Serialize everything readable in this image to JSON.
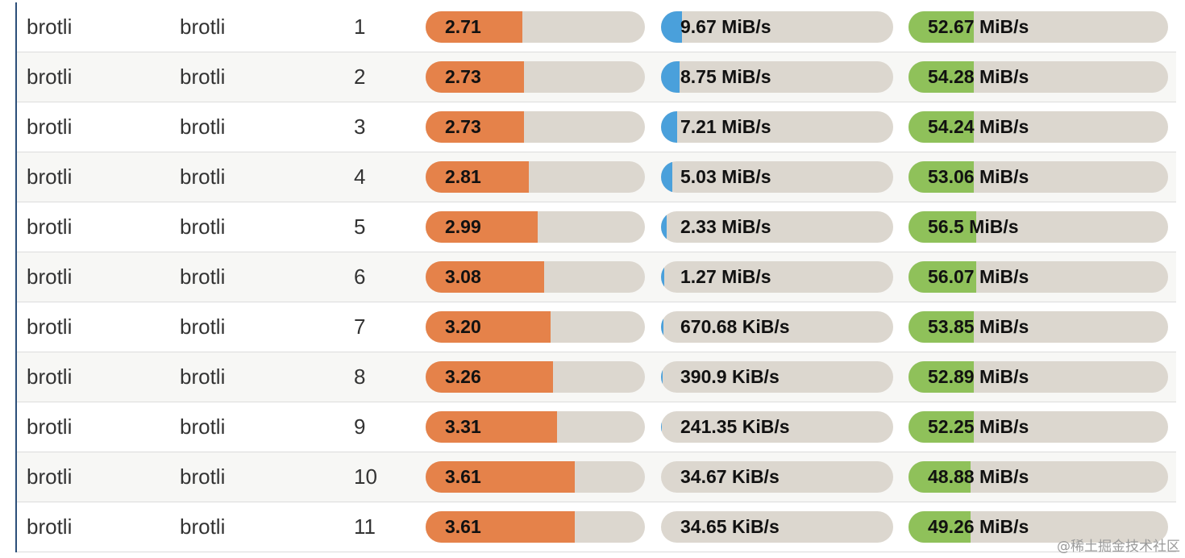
{
  "rows": [
    {
      "library": "brotli",
      "algorithm": "brotli",
      "level": "1",
      "ratio": "2.71",
      "ratio_pct": 44,
      "compress": "9.67 MiB/s",
      "compress_pct": 9,
      "decompress": "52.67 MiB/s",
      "decompress_pct": 25
    },
    {
      "library": "brotli",
      "algorithm": "brotli",
      "level": "2",
      "ratio": "2.73",
      "ratio_pct": 45,
      "compress": "8.75 MiB/s",
      "compress_pct": 8,
      "decompress": "54.28 MiB/s",
      "decompress_pct": 25
    },
    {
      "library": "brotli",
      "algorithm": "brotli",
      "level": "3",
      "ratio": "2.73",
      "ratio_pct": 45,
      "compress": "7.21 MiB/s",
      "compress_pct": 7,
      "decompress": "54.24 MiB/s",
      "decompress_pct": 25
    },
    {
      "library": "brotli",
      "algorithm": "brotli",
      "level": "4",
      "ratio": "2.81",
      "ratio_pct": 47,
      "compress": "5.03 MiB/s",
      "compress_pct": 5,
      "decompress": "53.06 MiB/s",
      "decompress_pct": 25
    },
    {
      "library": "brotli",
      "algorithm": "brotli",
      "level": "5",
      "ratio": "2.99",
      "ratio_pct": 51,
      "compress": "2.33 MiB/s",
      "compress_pct": 2.5,
      "decompress": "56.5 MiB/s",
      "decompress_pct": 26
    },
    {
      "library": "brotli",
      "algorithm": "brotli",
      "level": "6",
      "ratio": "3.08",
      "ratio_pct": 54,
      "compress": "1.27 MiB/s",
      "compress_pct": 1.5,
      "decompress": "56.07 MiB/s",
      "decompress_pct": 26
    },
    {
      "library": "brotli",
      "algorithm": "brotli",
      "level": "7",
      "ratio": "3.20",
      "ratio_pct": 57,
      "compress": "670.68 KiB/s",
      "compress_pct": 1,
      "decompress": "53.85 MiB/s",
      "decompress_pct": 25
    },
    {
      "library": "brotli",
      "algorithm": "brotli",
      "level": "8",
      "ratio": "3.26",
      "ratio_pct": 58,
      "compress": "390.9 KiB/s",
      "compress_pct": 0.6,
      "decompress": "52.89 MiB/s",
      "decompress_pct": 25
    },
    {
      "library": "brotli",
      "algorithm": "brotli",
      "level": "9",
      "ratio": "3.31",
      "ratio_pct": 60,
      "compress": "241.35 KiB/s",
      "compress_pct": 0.4,
      "decompress": "52.25 MiB/s",
      "decompress_pct": 25
    },
    {
      "library": "brotli",
      "algorithm": "brotli",
      "level": "10",
      "ratio": "3.61",
      "ratio_pct": 68,
      "compress": "34.67 KiB/s",
      "compress_pct": 0,
      "decompress": "48.88 MiB/s",
      "decompress_pct": 24
    },
    {
      "library": "brotli",
      "algorithm": "brotli",
      "level": "11",
      "ratio": "3.61",
      "ratio_pct": 68,
      "compress": "34.65 KiB/s",
      "compress_pct": 0,
      "decompress": "49.26 MiB/s",
      "decompress_pct": 24
    }
  ],
  "watermark": "@稀土掘金技术社区",
  "colors": {
    "ratio_bar": "#e5824a",
    "compress_bar": "#4aa0db",
    "decompress_bar": "#8fc15a",
    "bar_track": "#dcd7cf",
    "table_border": "#2c4f79"
  }
}
